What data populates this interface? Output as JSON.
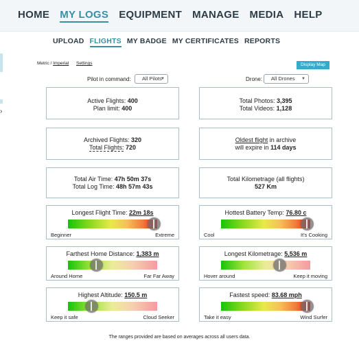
{
  "nav": {
    "items": [
      "HOME",
      "MY LOGS",
      "EQUIPMENT",
      "MANAGE",
      "MEDIA",
      "HELP"
    ],
    "active": "MY LOGS"
  },
  "subnav": {
    "items": [
      "UPLOAD",
      "FLIGHTS",
      "MY BADGE",
      "MY CERTIFICATES",
      "REPORTS"
    ],
    "active": "FLIGHTS"
  },
  "controls": {
    "units_metric": "Metric",
    "units_sep": " / ",
    "units_imperial": "Imperial",
    "settings": "Settings",
    "display_map": "Display Map",
    "pilot_label": "Pilot in command:",
    "pilot_value": "All Pilots",
    "drone_label": "Drone:",
    "drone_value": "All Drones"
  },
  "stats": {
    "active_flights_label": "Active Flights:",
    "active_flights": "400",
    "plan_limit_label": "Plan limit:",
    "plan_limit": "400",
    "total_photos_label": "Total Photos:",
    "total_photos": "3,395",
    "total_videos_label": "Total Videos:",
    "total_videos": "1,128",
    "archived_label": "Archived Flights:",
    "archived": "320",
    "total_flights_label": "Total Flights:",
    "total_flights": "720",
    "oldest_link": "Oldest flight",
    "oldest_text1": " in archive",
    "oldest_text2": "will expire in",
    "oldest_days": "114 days",
    "air_time_label": "Total Air Time:",
    "air_time": "47h 50m 37s",
    "log_time_label": "Total Log Time:",
    "log_time": "48h 57m 43s",
    "km_label": "Total Kilometrage (all flights)",
    "km_value": "527 Km"
  },
  "gauges": [
    {
      "title": "Longest Flight Time:",
      "value": "22m 18s",
      "min_label": "Beginner",
      "max_label": "Extreme",
      "level": 0.97,
      "style": "full"
    },
    {
      "title": "Hottest Battery Temp:",
      "value": "76.80 c",
      "min_label": "Cool",
      "max_label": "It's Cooking",
      "level": 0.97,
      "style": "full"
    },
    {
      "title": "Farthest Home Distance:",
      "value": "1,383 m",
      "min_label": "Around Home",
      "max_label": "Far Far Away",
      "level": 0.32,
      "style": "faded"
    },
    {
      "title": "Longest Kilometrage:",
      "value": "5,536 m",
      "min_label": "Hover around",
      "max_label": "Keep it moving",
      "level": 0.66,
      "style": "faded"
    },
    {
      "title": "Highest Altitude:",
      "value": "150.5 m",
      "min_label": "Keep it safe",
      "max_label": "Cloud Seeker",
      "level": 0.27,
      "style": "faded"
    },
    {
      "title": "Fastest speed:",
      "value": "83.68 mph",
      "min_label": "Take it easy",
      "max_label": "Wind Surfer",
      "level": 0.97,
      "style": "full"
    }
  ],
  "footnote": "The ranges provided are based on averages across all users data."
}
